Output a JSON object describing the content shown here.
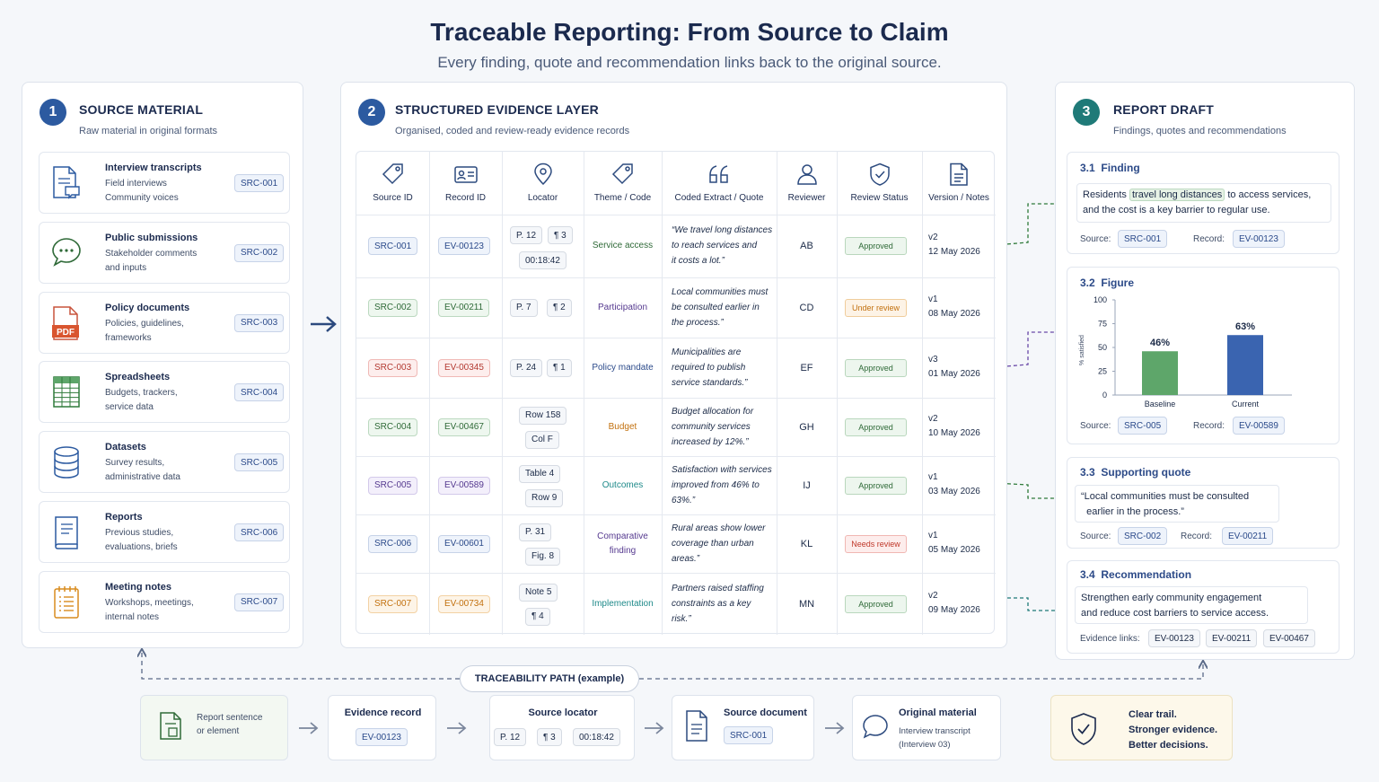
{
  "header": {
    "title": "Traceable Reporting: From Source to Claim",
    "subtitle": "Every finding, quote and recommendation links back to the original source."
  },
  "panel1": {
    "number": "1",
    "title": "SOURCE MATERIAL",
    "subtitle": "Raw material in original formats",
    "items": [
      {
        "title": "Interview transcripts",
        "desc1": "Field interviews",
        "desc2": "Community voices",
        "desc3": "",
        "id": "SRC-001",
        "icon": "transcript-icon"
      },
      {
        "title": "Public submissions",
        "desc1": "Stakeholder comments",
        "desc2": "and inputs",
        "desc3": "",
        "id": "SRC-002",
        "icon": "chat-bubble-icon"
      },
      {
        "title": "Policy documents",
        "desc1": "Policies, guidelines,",
        "desc2": "frameworks",
        "desc3": "",
        "id": "SRC-003",
        "icon": "pdf-icon",
        "icon_label": "PDF"
      },
      {
        "title": "Spreadsheets",
        "desc1": "Budgets, trackers,",
        "desc2": "service data",
        "desc3": "",
        "id": "SRC-004",
        "icon": "spreadsheet-icon"
      },
      {
        "title": "Datasets",
        "desc1": "Survey results,",
        "desc2": "administrative data",
        "desc3": "",
        "id": "SRC-005",
        "icon": "database-icon"
      },
      {
        "title": "Reports",
        "desc1": "Previous studies,",
        "desc2": "evaluations, briefs",
        "desc3": "",
        "id": "SRC-006",
        "icon": "book-icon"
      },
      {
        "title": "Meeting notes",
        "desc1": "Workshops, meetings,",
        "desc2": "internal notes",
        "desc3": "",
        "id": "SRC-007",
        "icon": "notepad-icon"
      }
    ]
  },
  "panel2": {
    "number": "2",
    "title": "STRUCTURED EVIDENCE LAYER",
    "subtitle": "Organised, coded and review-ready evidence records",
    "columns": [
      "Source ID",
      "Record ID",
      "Locator",
      "Theme / Code",
      "Coded Extract / Quote",
      "Reviewer",
      "Review Status",
      "Version / Notes"
    ],
    "column_icons": [
      "tag-icon",
      "id-card-icon",
      "location-pin-icon",
      "tag-icon",
      "quote-icon",
      "person-icon",
      "shield-check-icon",
      "document-icon"
    ],
    "rows": [
      {
        "src": "SRC-001",
        "rec": "EV-00123",
        "loc": [
          "P. 12",
          "¶ 3",
          "00:18:42"
        ],
        "theme": "Service access",
        "extract": [
          "“We travel long distances",
          "to reach services and",
          "it costs a lot.”"
        ],
        "reviewer": "AB",
        "status": "Approved",
        "ver": "v2",
        "date": "12 May 2026",
        "color": "blue",
        "theme_color": "#2f6a38",
        "status_type": "approved"
      },
      {
        "src": "SRC-002",
        "rec": "EV-00211",
        "loc": [
          "P. 7",
          "¶ 2"
        ],
        "theme": "Participation",
        "extract": [
          "Local communities must",
          "be consulted earlier in",
          "the process.”"
        ],
        "reviewer": "CD",
        "status": "Under review",
        "ver": "v1",
        "date": "08 May 2026",
        "color": "green",
        "theme_color": "#55398f",
        "status_type": "review"
      },
      {
        "src": "SRC-003",
        "rec": "EV-00345",
        "loc": [
          "P. 24",
          "¶ 1"
        ],
        "theme": "Policy mandate",
        "extract": [
          "Municipalities are",
          "required to publish",
          "service standards.”"
        ],
        "reviewer": "EF",
        "status": "Approved",
        "ver": "v3",
        "date": "01 May 2026",
        "color": "red",
        "theme_color": "#2b4a8a",
        "status_type": "approved"
      },
      {
        "src": "SRC-004",
        "rec": "EV-00467",
        "loc": [
          "Row 158",
          "Col F"
        ],
        "theme": "Budget",
        "extract": [
          "Budget allocation for",
          "community services",
          "increased by 12%.”"
        ],
        "reviewer": "GH",
        "status": "Approved",
        "ver": "v2",
        "date": "10 May 2026",
        "color": "green",
        "theme_color": "#c2700e",
        "status_type": "approved"
      },
      {
        "src": "SRC-005",
        "rec": "EV-00589",
        "loc": [
          "Table 4",
          "Row 9"
        ],
        "theme": "Outcomes",
        "extract": [
          "Satisfaction with services",
          "improved from 46% to",
          "63%.”"
        ],
        "reviewer": "IJ",
        "status": "Approved",
        "ver": "v1",
        "date": "03 May 2026",
        "color": "purple",
        "theme_color": "#1f8a8a",
        "status_type": "approved"
      },
      {
        "src": "SRC-006",
        "rec": "EV-00601",
        "loc": [
          "P. 31",
          "Fig. 8"
        ],
        "theme": "Comparative finding",
        "theme_lines": [
          "Comparative",
          "finding"
        ],
        "extract": [
          "Rural areas show lower",
          "coverage than urban",
          "areas.”"
        ],
        "reviewer": "KL",
        "status": "Needs review",
        "ver": "v1",
        "date": "05 May 2026",
        "color": "blue",
        "theme_color": "#55398f",
        "status_type": "needs"
      },
      {
        "src": "SRC-007",
        "rec": "EV-00734",
        "loc": [
          "Note 5",
          "¶ 4"
        ],
        "theme": "Implementation",
        "extract": [
          "Partners raised staffing",
          "constraints as a key",
          "risk.”"
        ],
        "reviewer": "MN",
        "status": "Approved",
        "ver": "v2",
        "date": "09 May 2026",
        "color": "orange",
        "theme_color": "#1f8a8a",
        "status_type": "approved"
      }
    ]
  },
  "panel3": {
    "number": "3",
    "title": "REPORT DRAFT",
    "subtitle": "Findings, quotes and recommendations",
    "finding": {
      "num": "3.1",
      "label": "Finding",
      "text_before": "Residents",
      "text_highlight": "travel long distances",
      "text_after": "to access services,",
      "text_line2": "and the cost is a key barrier to regular use.",
      "source_label": "Source:",
      "source": "SRC-001",
      "record_label": "Record:",
      "record": "EV-00123"
    },
    "figure": {
      "num": "3.2",
      "label": "Figure",
      "source_label": "Source:",
      "source": "SRC-005",
      "record_label": "Record:",
      "record": "EV-00589"
    },
    "quote": {
      "num": "3.3",
      "label": "Supporting quote",
      "line1": "“Local communities must be consulted",
      "line2": "earlier in the process.”",
      "source_label": "Source:",
      "source": "SRC-002",
      "record_label": "Record:",
      "record": "EV-00211"
    },
    "recommendation": {
      "num": "3.4",
      "label": "Recommendation",
      "line1": "Strengthen early community engagement",
      "line2": "and reduce cost barriers to service access.",
      "links_label": "Evidence links:",
      "links": [
        "EV-00123",
        "EV-00211",
        "EV-00467"
      ]
    }
  },
  "chart_data": {
    "type": "bar",
    "categories": [
      "Baseline",
      "Current"
    ],
    "values": [
      46,
      63
    ],
    "value_labels": [
      "46%",
      "63%"
    ],
    "ylabel": "% satisfied",
    "ylim": [
      0,
      100
    ],
    "yticks": [
      "0",
      "25",
      "50",
      "75",
      "100"
    ],
    "colors": [
      "#5ea66a",
      "#3a64b0"
    ]
  },
  "trace": {
    "label": "TRACEABILITY PATH (example)",
    "steps": [
      {
        "title": "Report sentence",
        "title2": "or element"
      },
      {
        "title": "Evidence record",
        "tag": "EV-00123"
      },
      {
        "title": "Source locator",
        "tags": [
          "P. 12",
          "¶ 3",
          "00:18:42"
        ]
      },
      {
        "title": "Source document",
        "tag": "SRC-001"
      },
      {
        "title": "Original material",
        "desc1": "Interview transcript",
        "desc2": "(Interview 03)"
      }
    ],
    "closing": [
      "Clear trail.",
      "Stronger evidence.",
      "Better decisions."
    ]
  },
  "colors": {
    "blue": "#2c5aa0",
    "teal": "#1f7a78",
    "green": "#5ea66a",
    "accent_dashed_green": "#2f7a3a",
    "accent_dashed_purple": "#6a4aa8"
  }
}
